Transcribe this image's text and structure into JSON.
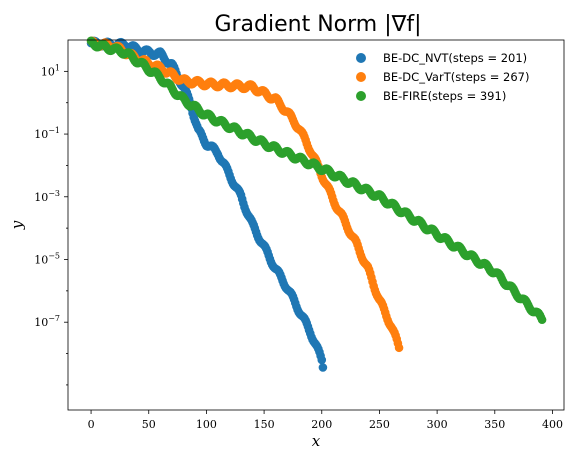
{
  "chart_data": {
    "type": "scatter",
    "title": "Gradient Norm |∇f|",
    "xlabel": "x",
    "ylabel": "y",
    "xlim": [
      -20,
      410
    ],
    "ylim_log10": [
      -9.8,
      2.0
    ],
    "yscale": "log",
    "x_ticks": [
      0,
      50,
      100,
      150,
      200,
      250,
      300,
      350,
      400
    ],
    "x_tick_labels": [
      "0",
      "50",
      "100",
      "150",
      "200",
      "250",
      "300",
      "350",
      "400"
    ],
    "y_ticks_log10": [
      1,
      -1,
      -3,
      -5,
      -7
    ],
    "y_tick_labels": [
      {
        "base": "10",
        "exp": "1"
      },
      {
        "base": "10",
        "exp": "−1"
      },
      {
        "base": "10",
        "exp": "−3"
      },
      {
        "base": "10",
        "exp": "−5"
      },
      {
        "base": "10",
        "exp": "−7"
      }
    ],
    "grid": false,
    "legend_position": "top-right",
    "series": [
      {
        "name": "BE-DC_NVT(steps = 201)",
        "color": "#1f77b4",
        "steps": 201,
        "log10_y_path": [
          [
            0,
            1.9
          ],
          [
            20,
            1.85
          ],
          [
            30,
            1.85
          ],
          [
            40,
            1.7
          ],
          [
            50,
            1.6
          ],
          [
            60,
            1.55
          ],
          [
            70,
            1.2
          ],
          [
            80,
            0.5
          ],
          [
            86,
            0.0
          ],
          [
            93,
            -0.9
          ],
          [
            100,
            -1.3
          ],
          [
            110,
            -1.6
          ],
          [
            120,
            -2.3
          ],
          [
            130,
            -3.0
          ],
          [
            140,
            -3.9
          ],
          [
            150,
            -4.6
          ],
          [
            160,
            -5.3
          ],
          [
            170,
            -5.9
          ],
          [
            180,
            -6.6
          ],
          [
            190,
            -7.3
          ],
          [
            200,
            -8.2
          ],
          [
            201,
            -8.4
          ]
        ]
      },
      {
        "name": "BE-DC_VarT(steps = 267)",
        "color": "#ff7f0e",
        "steps": 267,
        "log10_y_path": [
          [
            0,
            1.9
          ],
          [
            20,
            1.8
          ],
          [
            40,
            1.4
          ],
          [
            60,
            1.1
          ],
          [
            80,
            0.7
          ],
          [
            100,
            0.6
          ],
          [
            120,
            0.55
          ],
          [
            140,
            0.5
          ],
          [
            160,
            0.1
          ],
          [
            170,
            -0.3
          ],
          [
            180,
            -0.8
          ],
          [
            190,
            -1.5
          ],
          [
            200,
            -2.3
          ],
          [
            210,
            -3.1
          ],
          [
            220,
            -3.8
          ],
          [
            230,
            -4.5
          ],
          [
            240,
            -5.3
          ],
          [
            250,
            -6.3
          ],
          [
            260,
            -7.1
          ],
          [
            267,
            -7.8
          ]
        ]
      },
      {
        "name": "BE-FIRE(steps = 391)",
        "color": "#2ca02c",
        "steps": 391,
        "log10_y_path": [
          [
            0,
            1.9
          ],
          [
            30,
            1.6
          ],
          [
            60,
            0.8
          ],
          [
            80,
            0.1
          ],
          [
            100,
            -0.4
          ],
          [
            150,
            -1.3
          ],
          [
            200,
            -2.1
          ],
          [
            250,
            -3.0
          ],
          [
            300,
            -4.2
          ],
          [
            350,
            -5.4
          ],
          [
            391,
            -6.9
          ]
        ]
      }
    ]
  }
}
